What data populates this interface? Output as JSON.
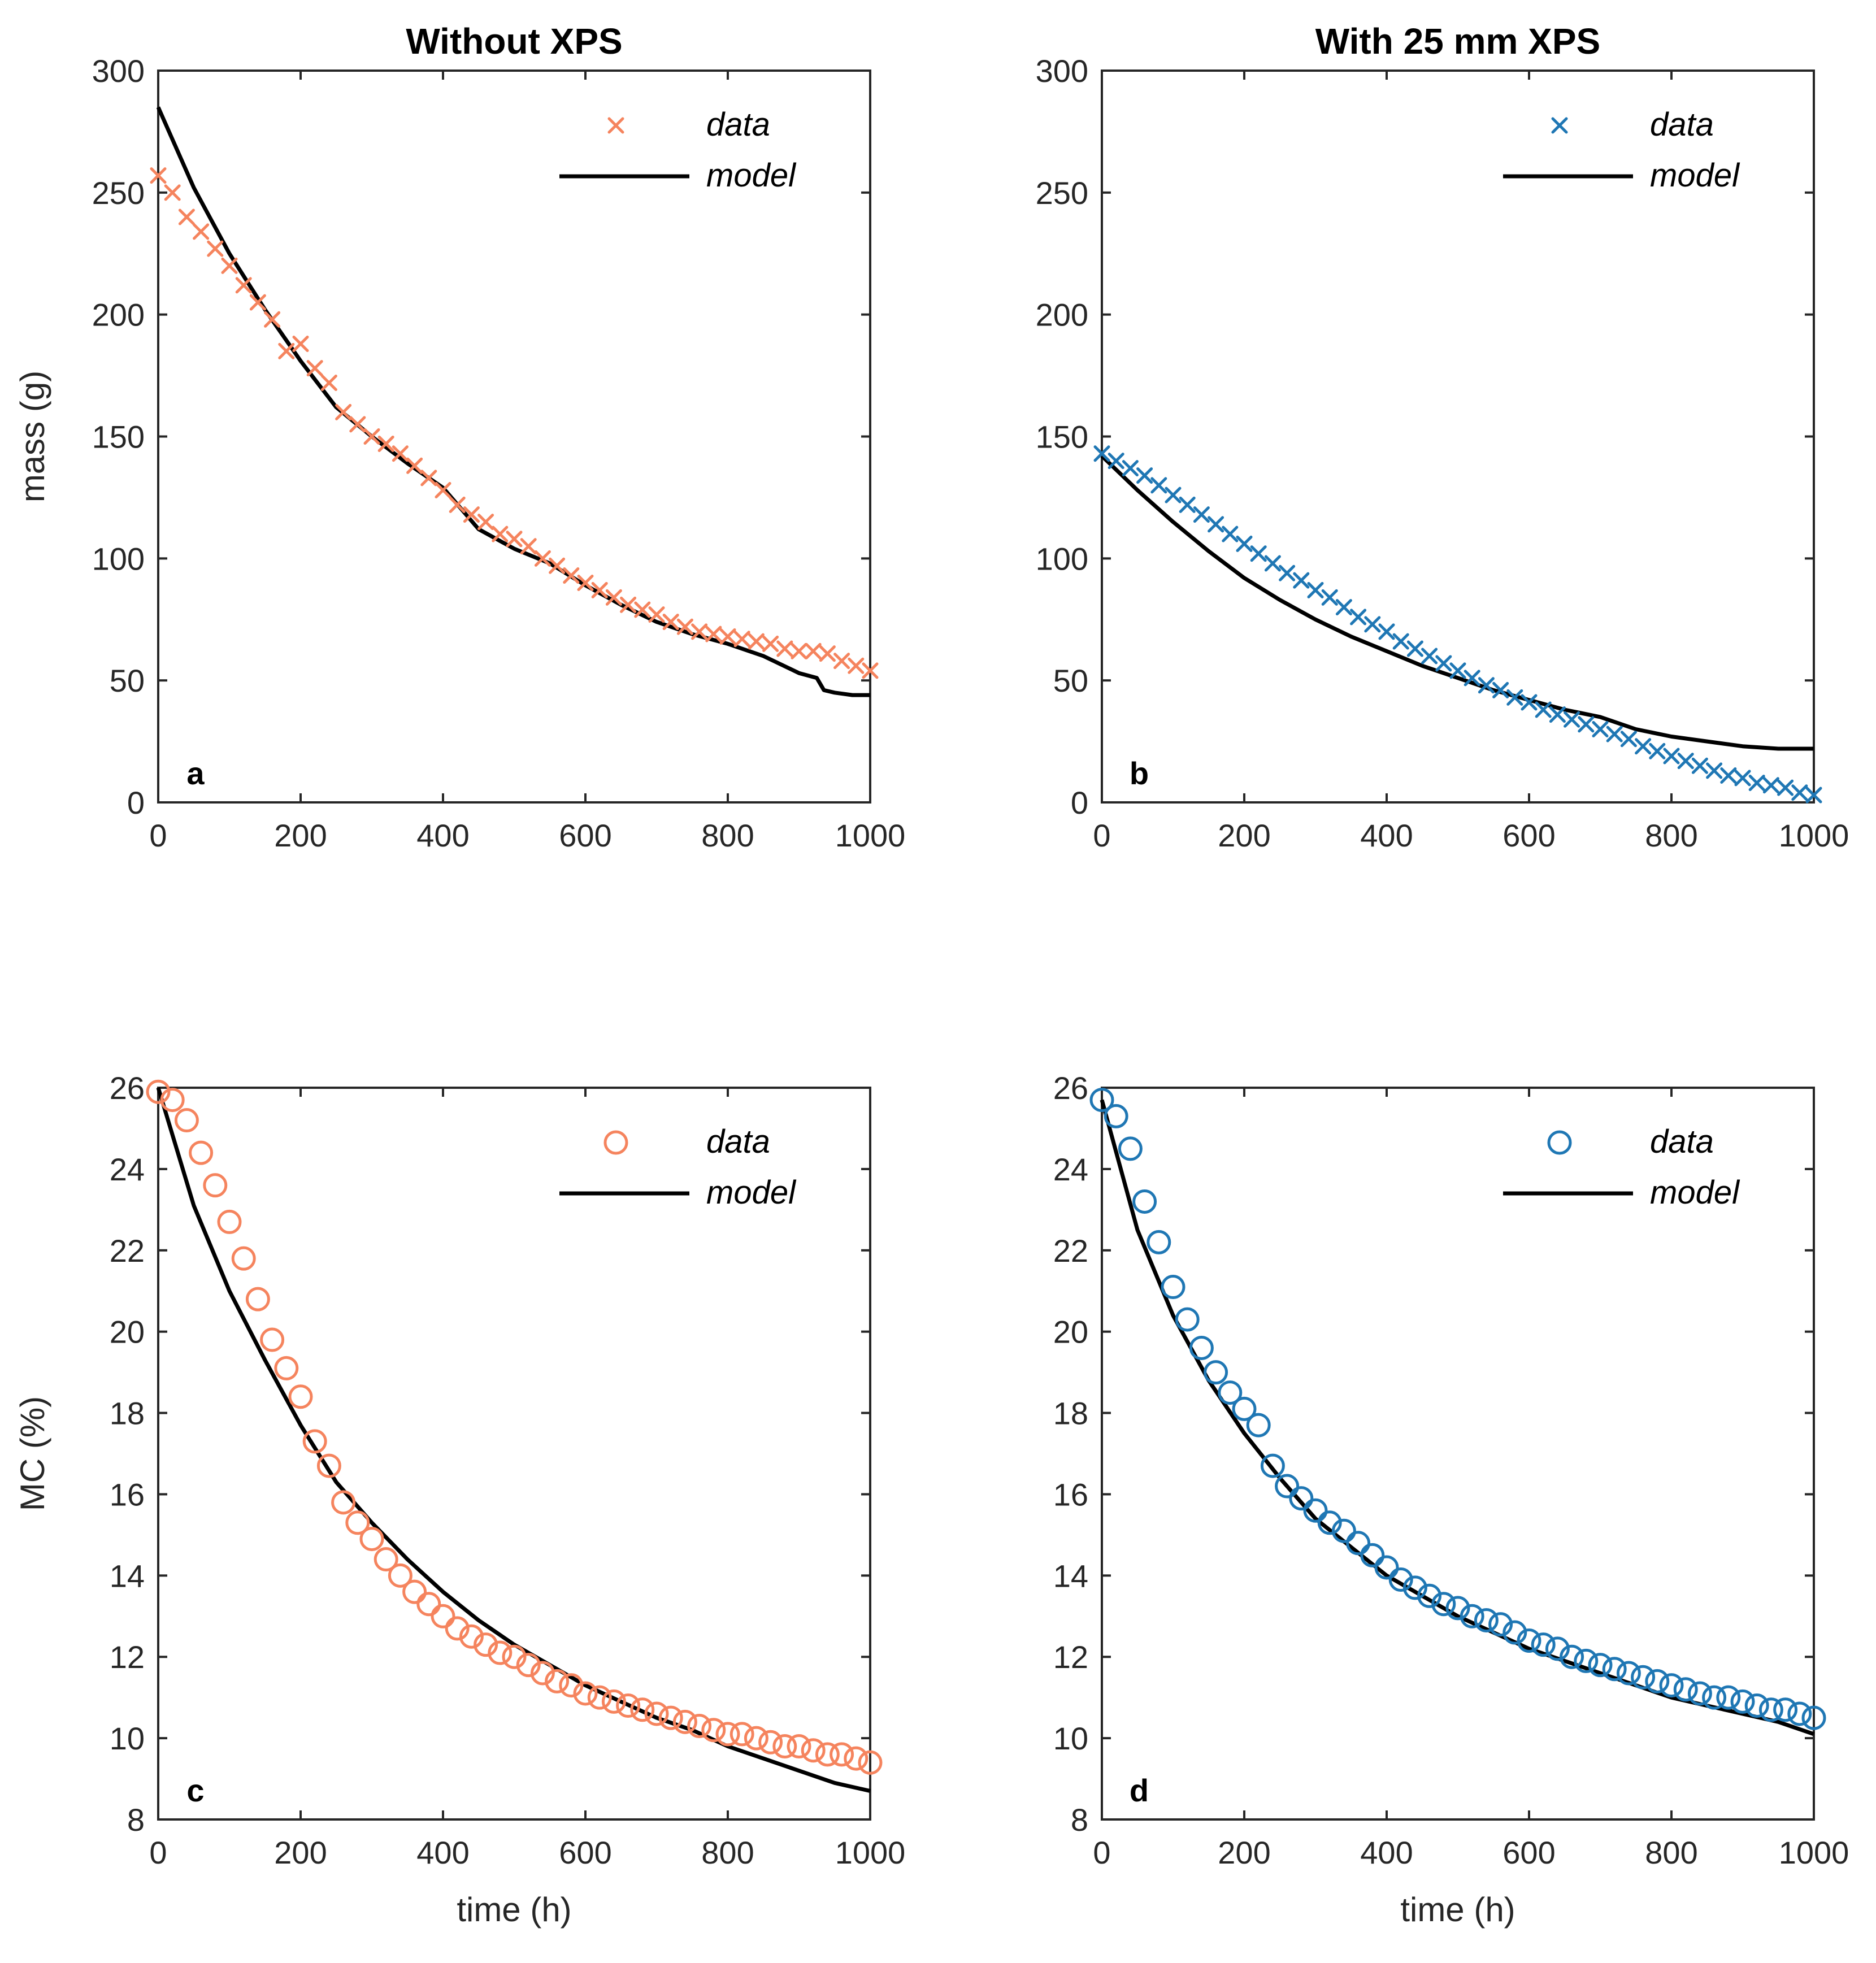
{
  "figure": {
    "colors": {
      "orange": "#F5845E",
      "blue": "#1F77B4",
      "model": "#000000"
    }
  },
  "chart_data": [
    {
      "id": "a",
      "type": "line",
      "title": "Without XPS",
      "panel_label": "a",
      "xlabel": "",
      "ylabel": "mass (g)",
      "xlim": [
        0,
        1000
      ],
      "ylim": [
        0,
        300
      ],
      "xticks": [
        0,
        200,
        400,
        600,
        800,
        1000
      ],
      "yticks": [
        0,
        50,
        100,
        150,
        200,
        250,
        300
      ],
      "legend": {
        "position": "top-right",
        "data_label": "data",
        "model_label": "model"
      },
      "marker": "x",
      "color": "#F5845E",
      "series": [
        {
          "name": "data",
          "x": [
            0,
            20,
            40,
            60,
            80,
            100,
            120,
            140,
            160,
            180,
            200,
            220,
            240,
            260,
            280,
            300,
            320,
            340,
            360,
            380,
            400,
            420,
            440,
            460,
            480,
            500,
            520,
            540,
            560,
            580,
            600,
            620,
            640,
            660,
            680,
            700,
            720,
            740,
            760,
            780,
            800,
            820,
            840,
            860,
            880,
            900,
            920,
            940,
            960,
            980,
            1000
          ],
          "y": [
            257,
            250,
            240,
            234,
            227,
            220,
            212,
            205,
            198,
            185,
            188,
            178,
            172,
            160,
            155,
            150,
            147,
            143,
            138,
            133,
            128,
            122,
            118,
            115,
            110,
            108,
            105,
            100,
            97,
            93,
            90,
            87,
            84,
            81,
            79,
            77,
            74,
            72,
            70,
            69,
            68,
            67,
            66,
            65,
            63,
            62,
            62,
            61,
            58,
            56,
            54
          ]
        },
        {
          "name": "model",
          "x": [
            0,
            50,
            100,
            150,
            200,
            250,
            300,
            350,
            400,
            450,
            500,
            550,
            600,
            650,
            700,
            750,
            800,
            850,
            900,
            925,
            935,
            950,
            975,
            1000
          ],
          "y": [
            285,
            252,
            225,
            202,
            181,
            162,
            150,
            139,
            129,
            112,
            104,
            98,
            89,
            81,
            74,
            69,
            65,
            60,
            53,
            51,
            46,
            45,
            44,
            44
          ]
        }
      ]
    },
    {
      "id": "b",
      "type": "line",
      "title": "With 25 mm XPS",
      "panel_label": "b",
      "xlabel": "",
      "ylabel": "",
      "xlim": [
        0,
        1000
      ],
      "ylim": [
        0,
        300
      ],
      "xticks": [
        0,
        200,
        400,
        600,
        800,
        1000
      ],
      "yticks": [
        0,
        50,
        100,
        150,
        200,
        250,
        300
      ],
      "legend": {
        "position": "top-right",
        "data_label": "data",
        "model_label": "model"
      },
      "marker": "x",
      "color": "#1F77B4",
      "series": [
        {
          "name": "data",
          "x": [
            0,
            20,
            40,
            60,
            80,
            100,
            120,
            140,
            160,
            180,
            200,
            220,
            240,
            260,
            280,
            300,
            320,
            340,
            360,
            380,
            400,
            420,
            440,
            460,
            480,
            500,
            520,
            540,
            560,
            580,
            600,
            620,
            640,
            660,
            680,
            700,
            720,
            740,
            760,
            780,
            800,
            820,
            840,
            860,
            880,
            900,
            920,
            940,
            960,
            980,
            1000
          ],
          "y": [
            143,
            140,
            137,
            134,
            130,
            126,
            122,
            118,
            114,
            110,
            106,
            102,
            98,
            94,
            91,
            87,
            84,
            80,
            76,
            73,
            70,
            66,
            63,
            60,
            57,
            54,
            51,
            48,
            46,
            43,
            41,
            38,
            36,
            34,
            32,
            30,
            28,
            26,
            23,
            21,
            19,
            17,
            15,
            13,
            11,
            10,
            8,
            7,
            6,
            4,
            3
          ]
        },
        {
          "name": "model",
          "x": [
            0,
            50,
            100,
            150,
            200,
            250,
            300,
            350,
            400,
            450,
            500,
            550,
            600,
            650,
            700,
            750,
            800,
            850,
            900,
            950,
            1000
          ],
          "y": [
            142,
            128,
            115,
            103,
            92,
            83,
            75,
            68,
            62,
            56,
            51,
            46,
            42,
            38,
            35,
            30,
            27,
            25,
            23,
            22,
            22
          ]
        }
      ]
    },
    {
      "id": "c",
      "type": "line",
      "title": "",
      "panel_label": "c",
      "xlabel": "time (h)",
      "ylabel": "MC (%)",
      "xlim": [
        0,
        1000
      ],
      "ylim": [
        8,
        26
      ],
      "xticks": [
        0,
        200,
        400,
        600,
        800,
        1000
      ],
      "yticks": [
        8,
        10,
        12,
        14,
        16,
        18,
        20,
        22,
        24,
        26
      ],
      "legend": {
        "position": "top-right",
        "data_label": "data",
        "model_label": "model"
      },
      "marker": "o",
      "color": "#F5845E",
      "series": [
        {
          "name": "data",
          "x": [
            0,
            20,
            40,
            60,
            80,
            100,
            120,
            140,
            160,
            180,
            200,
            220,
            240,
            260,
            280,
            300,
            320,
            340,
            360,
            380,
            400,
            420,
            440,
            460,
            480,
            500,
            520,
            540,
            560,
            580,
            600,
            620,
            640,
            660,
            680,
            700,
            720,
            740,
            760,
            780,
            800,
            820,
            840,
            860,
            880,
            900,
            920,
            940,
            960,
            980,
            1000
          ],
          "y": [
            25.9,
            25.7,
            25.2,
            24.4,
            23.6,
            22.7,
            21.8,
            20.8,
            19.8,
            19.1,
            18.4,
            17.3,
            16.7,
            15.8,
            15.3,
            14.9,
            14.4,
            14.0,
            13.6,
            13.3,
            13.0,
            12.7,
            12.5,
            12.3,
            12.1,
            12.0,
            11.8,
            11.6,
            11.4,
            11.3,
            11.1,
            11.0,
            10.9,
            10.8,
            10.7,
            10.6,
            10.5,
            10.4,
            10.3,
            10.2,
            10.1,
            10.1,
            10.0,
            9.9,
            9.8,
            9.8,
            9.7,
            9.6,
            9.6,
            9.5,
            9.4
          ]
        },
        {
          "name": "model",
          "x": [
            0,
            50,
            100,
            150,
            200,
            250,
            300,
            350,
            400,
            450,
            500,
            550,
            600,
            650,
            700,
            750,
            800,
            850,
            900,
            950,
            1000
          ],
          "y": [
            26.0,
            23.1,
            21.0,
            19.3,
            17.7,
            16.3,
            15.3,
            14.4,
            13.6,
            12.9,
            12.3,
            11.8,
            11.3,
            10.9,
            10.5,
            10.2,
            9.8,
            9.5,
            9.2,
            8.9,
            8.7
          ]
        }
      ]
    },
    {
      "id": "d",
      "type": "line",
      "title": "",
      "panel_label": "d",
      "xlabel": "time (h)",
      "ylabel": "",
      "xlim": [
        0,
        1000
      ],
      "ylim": [
        8,
        26
      ],
      "xticks": [
        0,
        200,
        400,
        600,
        800,
        1000
      ],
      "yticks": [
        8,
        10,
        12,
        14,
        16,
        18,
        20,
        22,
        24,
        26
      ],
      "legend": {
        "position": "top-right",
        "data_label": "data",
        "model_label": "model"
      },
      "marker": "o",
      "color": "#1F77B4",
      "series": [
        {
          "name": "data",
          "x": [
            0,
            20,
            40,
            60,
            80,
            100,
            120,
            140,
            160,
            180,
            200,
            220,
            240,
            260,
            280,
            300,
            320,
            340,
            360,
            380,
            400,
            420,
            440,
            460,
            480,
            500,
            520,
            540,
            560,
            580,
            600,
            620,
            640,
            660,
            680,
            700,
            720,
            740,
            760,
            780,
            800,
            820,
            840,
            860,
            880,
            900,
            920,
            940,
            960,
            980,
            1000
          ],
          "y": [
            25.7,
            25.3,
            24.5,
            23.2,
            22.2,
            21.1,
            20.3,
            19.6,
            19.0,
            18.5,
            18.1,
            17.7,
            16.7,
            16.2,
            15.9,
            15.6,
            15.3,
            15.1,
            14.8,
            14.5,
            14.2,
            13.9,
            13.7,
            13.5,
            13.3,
            13.2,
            13.0,
            12.9,
            12.8,
            12.6,
            12.4,
            12.3,
            12.2,
            12.0,
            11.9,
            11.8,
            11.7,
            11.6,
            11.5,
            11.4,
            11.3,
            11.2,
            11.1,
            11.0,
            11.0,
            10.9,
            10.8,
            10.7,
            10.7,
            10.6,
            10.5
          ]
        },
        {
          "name": "model",
          "x": [
            0,
            50,
            100,
            150,
            200,
            250,
            300,
            350,
            400,
            450,
            500,
            550,
            600,
            650,
            700,
            750,
            800,
            850,
            900,
            950,
            1000
          ],
          "y": [
            25.7,
            22.5,
            20.4,
            18.8,
            17.5,
            16.4,
            15.4,
            14.7,
            14.0,
            13.5,
            13.0,
            12.6,
            12.2,
            11.9,
            11.6,
            11.3,
            11.0,
            10.8,
            10.6,
            10.4,
            10.1
          ]
        }
      ]
    }
  ]
}
